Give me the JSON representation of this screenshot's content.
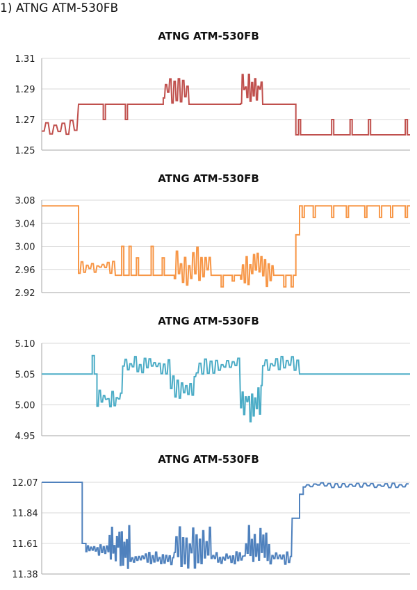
{
  "heading": "1) ATNG ATM-530FB",
  "colors": {
    "red": "#c0504d",
    "orange": "#f79646",
    "cyan": "#4bacc6",
    "blue": "#4f81bd",
    "grid": "#d9d9d9",
    "axis": "#a6a6a6"
  },
  "chart_data": [
    {
      "type": "line",
      "title": "ATNG ATM-530FB",
      "color": "#c0504d",
      "ylim": [
        1.25,
        1.31
      ],
      "yticks": [
        "1.25",
        "1.27",
        "1.29",
        "1.31"
      ],
      "grid": true,
      "segments": [
        {
          "x0": 0,
          "x1": 0.1,
          "y": 1.26,
          "osc": [
            1.26,
            1.27
          ],
          "k": 9
        },
        {
          "x0": 0.1,
          "x1": 0.33,
          "y": 1.28,
          "spikes": [
            [
              0.17,
              1.27
            ],
            [
              0.23,
              1.27
            ]
          ]
        },
        {
          "x0": 0.33,
          "x1": 0.4,
          "y": 1.28,
          "osc": [
            1.28,
            1.3
          ],
          "k": 12
        },
        {
          "x0": 0.4,
          "x1": 0.54,
          "y": 1.28
        },
        {
          "x0": 0.54,
          "x1": 0.6,
          "y": 1.28,
          "osc": [
            1.28,
            1.3
          ],
          "k": 14
        },
        {
          "x0": 0.6,
          "x1": 0.69,
          "y": 1.28
        },
        {
          "x0": 0.69,
          "x1": 1.0,
          "y": 1.26,
          "spikes": [
            [
              0.7,
              1.27
            ],
            [
              0.79,
              1.27
            ],
            [
              0.84,
              1.27
            ],
            [
              0.89,
              1.27
            ],
            [
              0.99,
              1.27
            ]
          ]
        }
      ]
    },
    {
      "type": "line",
      "title": "ATNG ATM-530FB",
      "color": "#f79646",
      "ylim": [
        2.92,
        3.08
      ],
      "yticks": [
        "2.92",
        "2.96",
        "3.00",
        "3.04",
        "3.08"
      ],
      "grid": true,
      "segments": [
        {
          "x0": 0,
          "x1": 0.1,
          "y": 3.07
        },
        {
          "x0": 0.1,
          "x1": 0.2,
          "y": 2.95,
          "osc": [
            2.95,
            2.98
          ],
          "k": 14
        },
        {
          "x0": 0.2,
          "x1": 0.36,
          "y": 2.95,
          "spikes": [
            [
              0.22,
              3.0
            ],
            [
              0.24,
              3.0
            ],
            [
              0.26,
              2.98
            ],
            [
              0.3,
              3.0
            ],
            [
              0.33,
              2.98
            ]
          ]
        },
        {
          "x0": 0.36,
          "x1": 0.46,
          "y": 2.95,
          "osc": [
            2.93,
            3.0
          ],
          "k": 18
        },
        {
          "x0": 0.46,
          "x1": 0.54,
          "y": 2.95,
          "spikes": [
            [
              0.49,
              2.93
            ],
            [
              0.52,
              2.94
            ]
          ]
        },
        {
          "x0": 0.54,
          "x1": 0.63,
          "y": 2.95,
          "osc": [
            2.93,
            2.99
          ],
          "k": 18
        },
        {
          "x0": 0.63,
          "x1": 0.69,
          "y": 2.95,
          "spikes": [
            [
              0.66,
              2.93
            ],
            [
              0.68,
              2.93
            ]
          ]
        },
        {
          "x0": 0.69,
          "x1": 0.7,
          "y": 3.02
        },
        {
          "x0": 0.7,
          "x1": 1.0,
          "y": 3.07,
          "spikes": [
            [
              0.71,
              3.05
            ],
            [
              0.74,
              3.05
            ],
            [
              0.79,
              3.05
            ],
            [
              0.83,
              3.05
            ],
            [
              0.88,
              3.05
            ],
            [
              0.92,
              3.05
            ],
            [
              0.95,
              3.05
            ],
            [
              0.99,
              3.05
            ]
          ]
        }
      ]
    },
    {
      "type": "line",
      "title": "ATNG ATM-530FB",
      "color": "#4bacc6",
      "ylim": [
        4.95,
        5.1
      ],
      "yticks": [
        "4.95",
        "5.00",
        "5.05",
        "5.10"
      ],
      "grid": true,
      "segments": [
        {
          "x0": 0,
          "x1": 0.15,
          "y": 5.05,
          "spikes": [
            [
              0.14,
              5.08
            ]
          ]
        },
        {
          "x0": 0.15,
          "x1": 0.22,
          "y": 5.01,
          "osc": [
            4.99,
            5.03
          ],
          "k": 12
        },
        {
          "x0": 0.22,
          "x1": 0.35,
          "y": 5.05,
          "osc": [
            5.05,
            5.08
          ],
          "k": 20
        },
        {
          "x0": 0.35,
          "x1": 0.42,
          "y": 5.03,
          "osc": [
            5.01,
            5.05
          ],
          "k": 12
        },
        {
          "x0": 0.42,
          "x1": 0.54,
          "y": 5.08,
          "osc": [
            5.05,
            5.08
          ],
          "k": 16
        },
        {
          "x0": 0.54,
          "x1": 0.6,
          "y": 5.02,
          "osc": [
            4.97,
            5.05
          ],
          "k": 14
        },
        {
          "x0": 0.6,
          "x1": 0.7,
          "y": 5.08,
          "osc": [
            5.05,
            5.08
          ],
          "k": 14
        },
        {
          "x0": 0.7,
          "x1": 1.0,
          "y": 5.05
        }
      ]
    },
    {
      "type": "line",
      "title": "ATNG ATM-530FB",
      "color": "#4f81bd",
      "ylim": [
        11.38,
        12.07
      ],
      "yticks": [
        "11.38",
        "11.61",
        "11.84",
        "12.07"
      ],
      "grid": true,
      "segments": [
        {
          "x0": 0,
          "x1": 0.11,
          "y": 12.07
        },
        {
          "x0": 0.11,
          "x1": 0.12,
          "y": 11.61
        },
        {
          "x0": 0.12,
          "x1": 0.18,
          "y": 11.55,
          "osc": [
            11.52,
            11.6
          ],
          "k": 14
        },
        {
          "x0": 0.18,
          "x1": 0.24,
          "y": 11.55,
          "osc": [
            11.42,
            11.75
          ],
          "k": 18
        },
        {
          "x0": 0.24,
          "x1": 0.36,
          "y": 11.5,
          "osc": [
            11.45,
            11.55
          ],
          "k": 26
        },
        {
          "x0": 0.36,
          "x1": 0.46,
          "y": 11.5,
          "osc": [
            11.42,
            11.75
          ],
          "k": 22
        },
        {
          "x0": 0.46,
          "x1": 0.55,
          "y": 11.48,
          "osc": [
            11.45,
            11.55
          ],
          "k": 20
        },
        {
          "x0": 0.55,
          "x1": 0.62,
          "y": 11.5,
          "osc": [
            11.42,
            11.75
          ],
          "k": 18
        },
        {
          "x0": 0.62,
          "x1": 0.68,
          "y": 11.48,
          "osc": [
            11.45,
            11.55
          ],
          "k": 12
        },
        {
          "x0": 0.68,
          "x1": 0.7,
          "y": 11.8
        },
        {
          "x0": 0.7,
          "x1": 0.71,
          "y": 11.98
        },
        {
          "x0": 0.71,
          "x1": 1.0,
          "y": 12.05,
          "osc": [
            12.03,
            12.07
          ],
          "k": 30
        }
      ]
    }
  ]
}
